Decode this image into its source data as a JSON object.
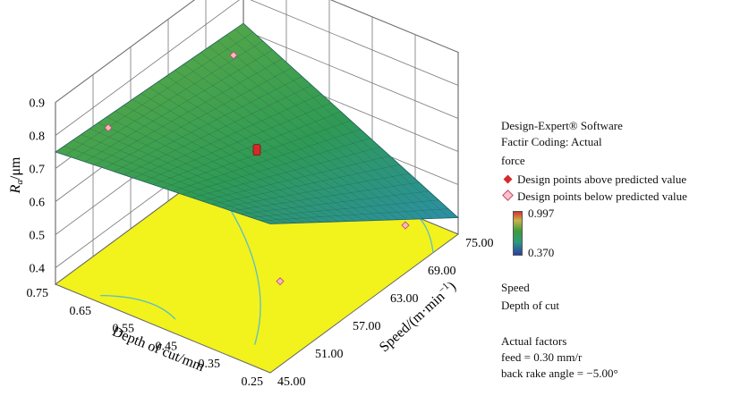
{
  "chart_data": {
    "type": "surface3d",
    "z_label_main": "R",
    "z_label_sub": "a",
    "z_label_unit": "/μm",
    "z_ticks": [
      "0.9",
      "0.8",
      "0.7",
      "0.6",
      "0.5",
      "0.4"
    ],
    "zlim": [
      0.35,
      0.9
    ],
    "x_axis_label": "Depth of cut/mm",
    "x_ticks": [
      "0.75",
      "0.65",
      "0.55",
      "0.45",
      "0.35",
      "0.25"
    ],
    "xlim": [
      0.25,
      0.75
    ],
    "y_axis_label_prefix": "Speed/(m·min",
    "y_axis_label_sup": "−1",
    "y_axis_label_suffix": ")",
    "y_ticks": [
      "45.00",
      "51.00",
      "57.00",
      "63.00",
      "69.00",
      "75.00"
    ],
    "ylim": [
      45,
      75
    ],
    "surface_corners": [
      {
        "depth": 0.75,
        "speed": 45,
        "ra": 0.75
      },
      {
        "depth": 0.25,
        "speed": 45,
        "ra": 0.8
      },
      {
        "depth": 0.75,
        "speed": 75,
        "ra": 0.72
      },
      {
        "depth": 0.25,
        "speed": 75,
        "ra": 0.4
      }
    ],
    "design_points_above": [
      {
        "depth": 0.5,
        "speed": 60,
        "ra": 0.67
      }
    ],
    "design_points_below": [
      {
        "depth": 0.7,
        "speed": 50,
        "ra": 0.78
      },
      {
        "depth": 0.3,
        "speed": 50,
        "ra": 0.53
      },
      {
        "depth": 0.7,
        "speed": 70,
        "ra": 0.72
      },
      {
        "depth": 0.3,
        "speed": 70,
        "ra": 0.42
      }
    ],
    "colors": {
      "surface_high": "#b5b24a",
      "surface_mid": "#2f9a55",
      "surface_low": "#2b8fa8",
      "floor": "#f2f21c",
      "contour": "#59c0c6",
      "point_above": "#d42a2a",
      "point_below": "#ffb6c1"
    }
  },
  "legend": {
    "software": "Design-Expert® Software",
    "coding": "Factir Coding: Actual",
    "response": "force",
    "above_label": "Design points above predicted value",
    "below_label": "Design points below predicted value",
    "color_max": "0.997",
    "color_min": "0.370",
    "x1_label": "Speed",
    "x2_label": "Depth of cut",
    "actual_factors_title": "Actual factors",
    "factor_feed": "feed = 0.30 mm/r",
    "factor_rake": "back rake angle = −5.00°"
  }
}
